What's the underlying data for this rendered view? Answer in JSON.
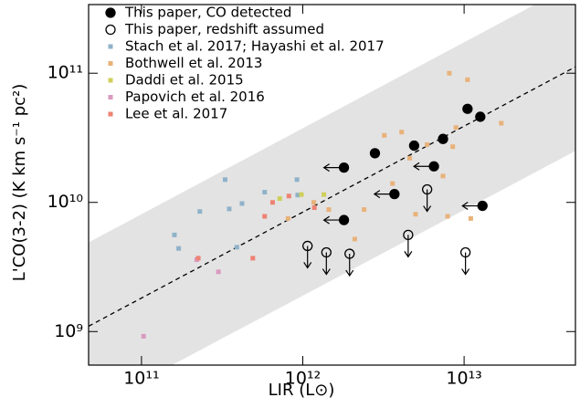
{
  "chart_data": {
    "type": "scatter",
    "xlabel": "LIR (L⊙)",
    "ylabel": "L'CO(3-2) (K km s⁻¹ pc²)",
    "xscale": "log",
    "yscale": "log",
    "xlim": [
      47000000000.0,
      49000000000000.0
    ],
    "ylim": [
      550000000.0,
      340000000000.0
    ],
    "xticks": [
      {
        "value": 100000000000.0,
        "label": "10¹¹"
      },
      {
        "value": 1000000000000.0,
        "label": "10¹²"
      },
      {
        "value": 10000000000000.0,
        "label": "10¹³"
      }
    ],
    "yticks": [
      {
        "value": 1000000000.0,
        "label": "10⁹"
      },
      {
        "value": 10000000000.0,
        "label": "10¹⁰"
      },
      {
        "value": 100000000000.0,
        "label": "10¹¹"
      }
    ],
    "legend": "upper left",
    "band": {
      "color": "#e3e3e3",
      "x": [
        47000000000.0,
        49000000000000.0
      ],
      "lower": [
        250000000.0,
        25000000000.0
      ],
      "upper": [
        4900000000.0,
        500000000000.0
      ]
    },
    "fit_line": {
      "color": "#000000",
      "style": "dashed",
      "x": [
        47000000000.0,
        49000000000000.0
      ],
      "values": [
        1100000000.0,
        112000000000.0
      ]
    },
    "series": [
      {
        "name": "This paper, CO detected",
        "color": "#000000",
        "marker": "filled-circle",
        "x": [
          10500000000000.0,
          12600000000000.0,
          4900000000000.0,
          7400000000000.0,
          2800000000000.0,
          1800000000000.0,
          6500000000000.0,
          3700000000000.0,
          13000000000000.0,
          1800000000000.0
        ],
        "values": [
          53000000000.0,
          46000000000.0,
          27500000000.0,
          31000000000.0,
          24000000000.0,
          18600000000.0,
          19000000000.0,
          11600000000.0,
          9400000000.0,
          7300000000.0
        ],
        "left_arrow": [
          false,
          false,
          false,
          false,
          false,
          true,
          true,
          true,
          true,
          true
        ]
      },
      {
        "name": "This paper, redshift assumed",
        "color": "#000000",
        "marker": "open-circle",
        "x": [
          5900000000000.0,
          1070000000000.0,
          1400000000000.0,
          1950000000000.0,
          4500000000000.0,
          10200000000000.0
        ],
        "values": [
          12600000000.0,
          4600000000.0,
          4100000000.0,
          4000000000.0,
          5600000000.0,
          4100000000.0
        ],
        "down_arrow": [
          true,
          true,
          true,
          true,
          true,
          true
        ]
      },
      {
        "name": "Stach et al. 2017; Hayashi et al. 2017",
        "color": "#8fb2c9",
        "marker": "square",
        "x": [
          330000000000.0,
          920000000000.0,
          580000000000.0,
          420000000000.0,
          350000000000.0,
          230000000000.0,
          160000000000.0,
          170000000000.0,
          390000000000.0,
          930000000000.0
        ],
        "values": [
          15000000000.0,
          15000000000.0,
          12000000000.0,
          9800000000.0,
          8900000000.0,
          8500000000.0,
          5600000000.0,
          4400000000.0,
          4500000000.0,
          11400000000.0
        ]
      },
      {
        "name": "Bothwell et al. 2013",
        "color": "#e8b27a",
        "marker": "square",
        "x": [
          8100000000000.0,
          10500000000000.0,
          17000000000000.0,
          3200000000000.0,
          4100000000000.0,
          5900000000000.0,
          8500000000000.0,
          4600000000000.0,
          7400000000000.0,
          3600000000000.0,
          2400000000000.0,
          5000000000000.0,
          7900000000000.0,
          11000000000000.0,
          2100000000000.0,
          1450000000000.0,
          810000000000.0,
          1170000000000.0,
          8900000000000.0
        ],
        "values": [
          100000000000.0,
          89000000000.0,
          41000000000.0,
          33000000000.0,
          35000000000.0,
          28000000000.0,
          27000000000.0,
          22000000000.0,
          16000000000.0,
          14000000000.0,
          8800000000.0,
          8100000000.0,
          7800000000.0,
          7500000000.0,
          5200000000.0,
          8800000000.0,
          7500000000.0,
          10000000000.0,
          38000000000.0
        ]
      },
      {
        "name": "Daddi et al. 2015",
        "color": "#cfcf5a",
        "marker": "square",
        "x": [
          720000000000.0,
          980000000000.0,
          1350000000000.0
        ],
        "values": [
          10700000000.0,
          11500000000.0,
          11500000000.0
        ]
      },
      {
        "name": "Papovich et al. 2016",
        "color": "#d99ac0",
        "marker": "square",
        "x": [
          103000000000.0,
          300000000000.0,
          220000000000.0
        ],
        "values": [
          920000000.0,
          2900000000.0,
          3600000000.0
        ]
      },
      {
        "name": "Lee et al. 2017",
        "color": "#ee8272",
        "marker": "square",
        "x": [
          225000000000.0,
          490000000000.0,
          820000000000.0,
          580000000000.0,
          1180000000000.0,
          650000000000.0
        ],
        "values": [
          3700000000.0,
          3700000000.0,
          11200000000.0,
          7800000000.0,
          9100000000.0,
          10000000000.0
        ]
      }
    ]
  }
}
